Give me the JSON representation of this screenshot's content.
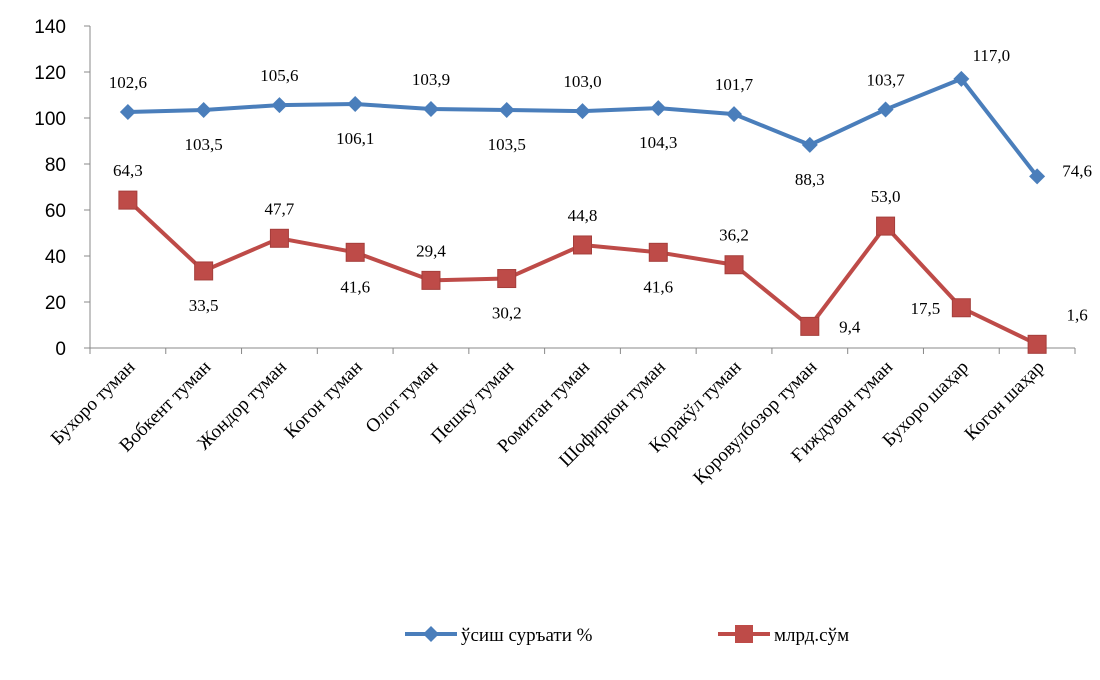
{
  "chart_data": {
    "type": "line",
    "categories": [
      "Бухоро туман",
      "Вобкент туман",
      "Жондор туман",
      "Когон туман",
      "Олот туман",
      "Пешку туман",
      "Ромитан туман",
      "Шофиркон туман",
      "Қоракўл туман",
      "Қоровулбозор туман",
      "Ғиждувон туман",
      "Бухоро шаҳар",
      "Когон шаҳар"
    ],
    "series": [
      {
        "name": "ўсиш суръати %",
        "values": [
          102.6,
          103.5,
          105.6,
          106.1,
          103.9,
          103.5,
          103.0,
          104.3,
          101.7,
          88.3,
          103.7,
          117.0,
          74.6
        ],
        "labels": [
          "102,6",
          "103,5",
          "105,6",
          "106,1",
          "103,9",
          "103,5",
          "103,0",
          "104,3",
          "101,7",
          "88,3",
          "103,7",
          "117,0",
          "74,6"
        ],
        "color": "#4a7ebb",
        "marker": "diamond"
      },
      {
        "name": "млрд.сўм",
        "values": [
          64.3,
          33.5,
          47.7,
          41.6,
          29.4,
          30.2,
          44.8,
          41.6,
          36.2,
          9.4,
          53.0,
          17.5,
          1.6
        ],
        "labels": [
          "64,3",
          "33,5",
          "47,7",
          "41,6",
          "29,4",
          "30,2",
          "44,8",
          "41,6",
          "36,2",
          "9,4",
          "53,0",
          "17,5",
          "1,6"
        ],
        "color": "#be4b48",
        "marker": "square"
      }
    ],
    "ylim": [
      0,
      140
    ],
    "yticks": [
      "0",
      "20",
      "40",
      "60",
      "80",
      "100",
      "120",
      "140"
    ],
    "legend": "bottom",
    "grid": false
  }
}
